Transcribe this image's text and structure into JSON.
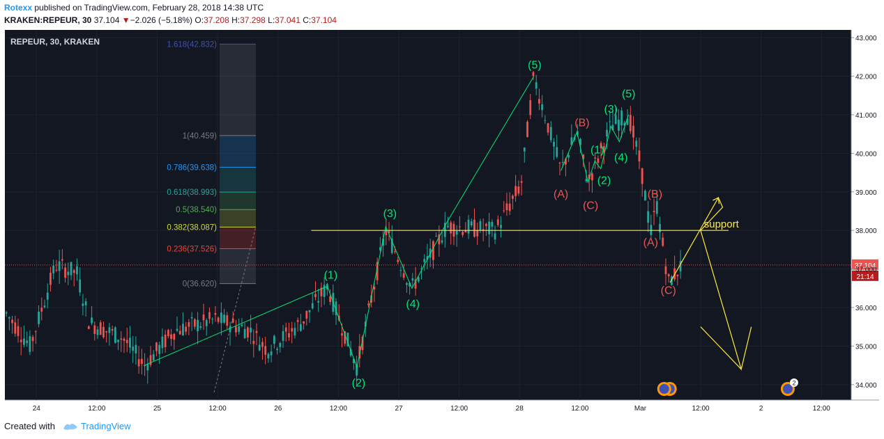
{
  "header": {
    "author": "Rotexx",
    "published_text": "published on TradingView.com, February 28, 2018 14:38 UTC",
    "symbol": "KRAKEN:REPEUR, 30",
    "last_price": "37.104",
    "change": "−2.026 (−5.18%)",
    "open_label": "O:",
    "open": "37.208",
    "high_label": "H:",
    "high": "37.298",
    "low_label": "L:",
    "low": "37.041",
    "close_label": "C:",
    "close": "37.104"
  },
  "chart_title": "REPEUR, 30, KRAKEN",
  "footer": {
    "created_with": "Created with",
    "brand": "TradingView"
  },
  "colors": {
    "background": "#131722",
    "up": "#26a69a",
    "down": "#ef5350",
    "wave_green": "#00e676",
    "wave_red": "#ef5350",
    "support": "#ffeb3b",
    "projection": "#ffeb3b"
  },
  "chart_data": {
    "type": "candlestick",
    "ylim": [
      33.6,
      43.2
    ],
    "y_ticks": [
      "43.000",
      "42.000",
      "41.000",
      "40.000",
      "39.000",
      "38.000",
      "37.000",
      "36.000",
      "35.000",
      "34.000"
    ],
    "x_ticks": [
      "24",
      "12:00",
      "25",
      "12:00",
      "26",
      "12:00",
      "27",
      "12:00",
      "28",
      "12:00",
      "Mar",
      "12:00",
      "2",
      "12:00"
    ],
    "price_badge": "37.104",
    "countdown_badge": "21:14",
    "support_label": "support",
    "support_level": 38.0,
    "fibonacci": [
      {
        "ratio": "1.618",
        "price": 42.832,
        "label": "1.618(42.832)",
        "color": "#3f51b5"
      },
      {
        "ratio": "1",
        "price": 40.459,
        "label": "1(40.459)",
        "color": "#787b86"
      },
      {
        "ratio": "0.786",
        "price": 39.638,
        "label": "0.786(39.638)",
        "color": "#2196f3"
      },
      {
        "ratio": "0.618",
        "price": 38.993,
        "label": "0.618(38.993)",
        "color": "#26a69a"
      },
      {
        "ratio": "0.5",
        "price": 38.54,
        "label": "0.5(38.540)",
        "color": "#4caf50"
      },
      {
        "ratio": "0.382",
        "price": 38.087,
        "label": "0.382(38.087)",
        "color": "#cddc39"
      },
      {
        "ratio": "0.236",
        "price": 37.526,
        "label": "0.236(37.526)",
        "color": "#f44336"
      },
      {
        "ratio": "0",
        "price": 36.62,
        "label": "0(36.620)",
        "color": "#787b86"
      }
    ],
    "wave_labels": [
      {
        "text": "(1)",
        "t": 0.385,
        "price": 36.75,
        "color": "green"
      },
      {
        "text": "(2)",
        "t": 0.418,
        "price": 33.95,
        "color": "green"
      },
      {
        "text": "(3)",
        "t": 0.455,
        "price": 38.35,
        "color": "green"
      },
      {
        "text": "(4)",
        "t": 0.482,
        "price": 36.0,
        "color": "green"
      },
      {
        "text": "(5)",
        "t": 0.626,
        "price": 42.2,
        "color": "green"
      },
      {
        "text": "(A)",
        "t": 0.657,
        "price": 38.85,
        "color": "red"
      },
      {
        "text": "(B)",
        "t": 0.682,
        "price": 40.7,
        "color": "red"
      },
      {
        "text": "(C)",
        "t": 0.692,
        "price": 38.55,
        "color": "red"
      },
      {
        "text": "(1)",
        "t": 0.7,
        "price": 40.0,
        "color": "green"
      },
      {
        "text": "(2)",
        "t": 0.708,
        "price": 39.2,
        "color": "green"
      },
      {
        "text": "(3)",
        "t": 0.716,
        "price": 41.05,
        "color": "green"
      },
      {
        "text": "(4)",
        "t": 0.728,
        "price": 39.8,
        "color": "green"
      },
      {
        "text": "(5)",
        "t": 0.737,
        "price": 41.45,
        "color": "green"
      },
      {
        "text": "(B)",
        "t": 0.768,
        "price": 38.85,
        "color": "red"
      },
      {
        "text": "(A)",
        "t": 0.763,
        "price": 37.6,
        "color": "red"
      },
      {
        "text": "(C)",
        "t": 0.784,
        "price": 36.35,
        "color": "red"
      }
    ],
    "wave_path_1": [
      {
        "t": 0.165,
        "price": 34.5
      },
      {
        "t": 0.381,
        "price": 36.55
      },
      {
        "t": 0.416,
        "price": 34.45
      },
      {
        "t": 0.45,
        "price": 38.1
      },
      {
        "t": 0.481,
        "price": 36.5
      },
      {
        "t": 0.522,
        "price": 38.2
      },
      {
        "t": 0.625,
        "price": 42.0
      }
    ],
    "wave_path_2": [
      {
        "t": 0.657,
        "price": 39.55
      },
      {
        "t": 0.676,
        "price": 40.55
      },
      {
        "t": 0.689,
        "price": 39.25
      },
      {
        "t": 0.697,
        "price": 39.8
      },
      {
        "t": 0.704,
        "price": 39.6
      },
      {
        "t": 0.716,
        "price": 40.7
      },
      {
        "t": 0.726,
        "price": 40.3
      },
      {
        "t": 0.737,
        "price": 41.0
      }
    ],
    "projection_path": [
      {
        "t": 0.786,
        "price": 36.65
      },
      {
        "t": 0.843,
        "price": 38.85
      },
      {
        "t": 0.848,
        "price": 38.6
      },
      {
        "t": 0.822,
        "price": 38.0
      },
      {
        "t": 0.87,
        "price": 34.4
      },
      {
        "t": 0.882,
        "price": 35.5
      }
    ],
    "projection_path_2": [
      {
        "t": 0.822,
        "price": 35.5
      },
      {
        "t": 0.87,
        "price": 34.4
      }
    ],
    "events": [
      {
        "t": 0.779,
        "count": "",
        "kind": "double"
      },
      {
        "t": 0.925,
        "count": "2",
        "kind": "single"
      }
    ]
  }
}
